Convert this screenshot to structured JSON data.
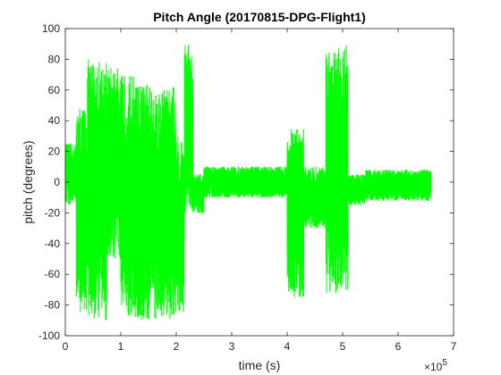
{
  "chart_data": {
    "type": "line",
    "title": "Pitch Angle (20170815-DPG-Flight1)",
    "xlabel": "time (s)",
    "ylabel": "pitch (degrees)",
    "x_multiplier_base": "×10",
    "x_multiplier_exp": "5",
    "xlim": [
      0,
      7
    ],
    "ylim": [
      -100,
      100
    ],
    "x_ticks": [
      0,
      1,
      2,
      3,
      4,
      5,
      6,
      7
    ],
    "y_ticks": [
      -100,
      -80,
      -60,
      -40,
      -20,
      0,
      20,
      40,
      60,
      80,
      100
    ],
    "grid": false,
    "box": true,
    "series": [
      {
        "color": "#00ff00",
        "segments": [
          {
            "x0": 0.0,
            "x1": 0.2,
            "lo": -15,
            "hi": 25
          },
          {
            "x0": 0.2,
            "x1": 0.4,
            "lo": -85,
            "hi": 50
          },
          {
            "x0": 0.4,
            "x1": 0.75,
            "lo": -90,
            "hi": 80
          },
          {
            "x0": 0.75,
            "x1": 1.0,
            "lo": -50,
            "hi": 75
          },
          {
            "x0": 1.0,
            "x1": 1.25,
            "lo": -88,
            "hi": 70
          },
          {
            "x0": 1.25,
            "x1": 1.55,
            "lo": -90,
            "hi": 65
          },
          {
            "x0": 1.55,
            "x1": 2.0,
            "lo": -90,
            "hi": 62
          },
          {
            "x0": 2.0,
            "x1": 2.15,
            "lo": -85,
            "hi": 30
          },
          {
            "x0": 2.15,
            "x1": 2.3,
            "lo": -20,
            "hi": 90
          },
          {
            "x0": 2.3,
            "x1": 2.5,
            "lo": -20,
            "hi": 5
          },
          {
            "x0": 2.5,
            "x1": 4.0,
            "lo": -10,
            "hi": 10
          },
          {
            "x0": 4.0,
            "x1": 4.3,
            "lo": -75,
            "hi": 35
          },
          {
            "x0": 4.3,
            "x1": 4.7,
            "lo": -30,
            "hi": 10
          },
          {
            "x0": 4.7,
            "x1": 5.1,
            "lo": -72,
            "hi": 90
          },
          {
            "x0": 5.1,
            "x1": 5.4,
            "lo": -15,
            "hi": 5
          },
          {
            "x0": 5.4,
            "x1": 6.6,
            "lo": -12,
            "hi": 8
          }
        ]
      }
    ]
  }
}
